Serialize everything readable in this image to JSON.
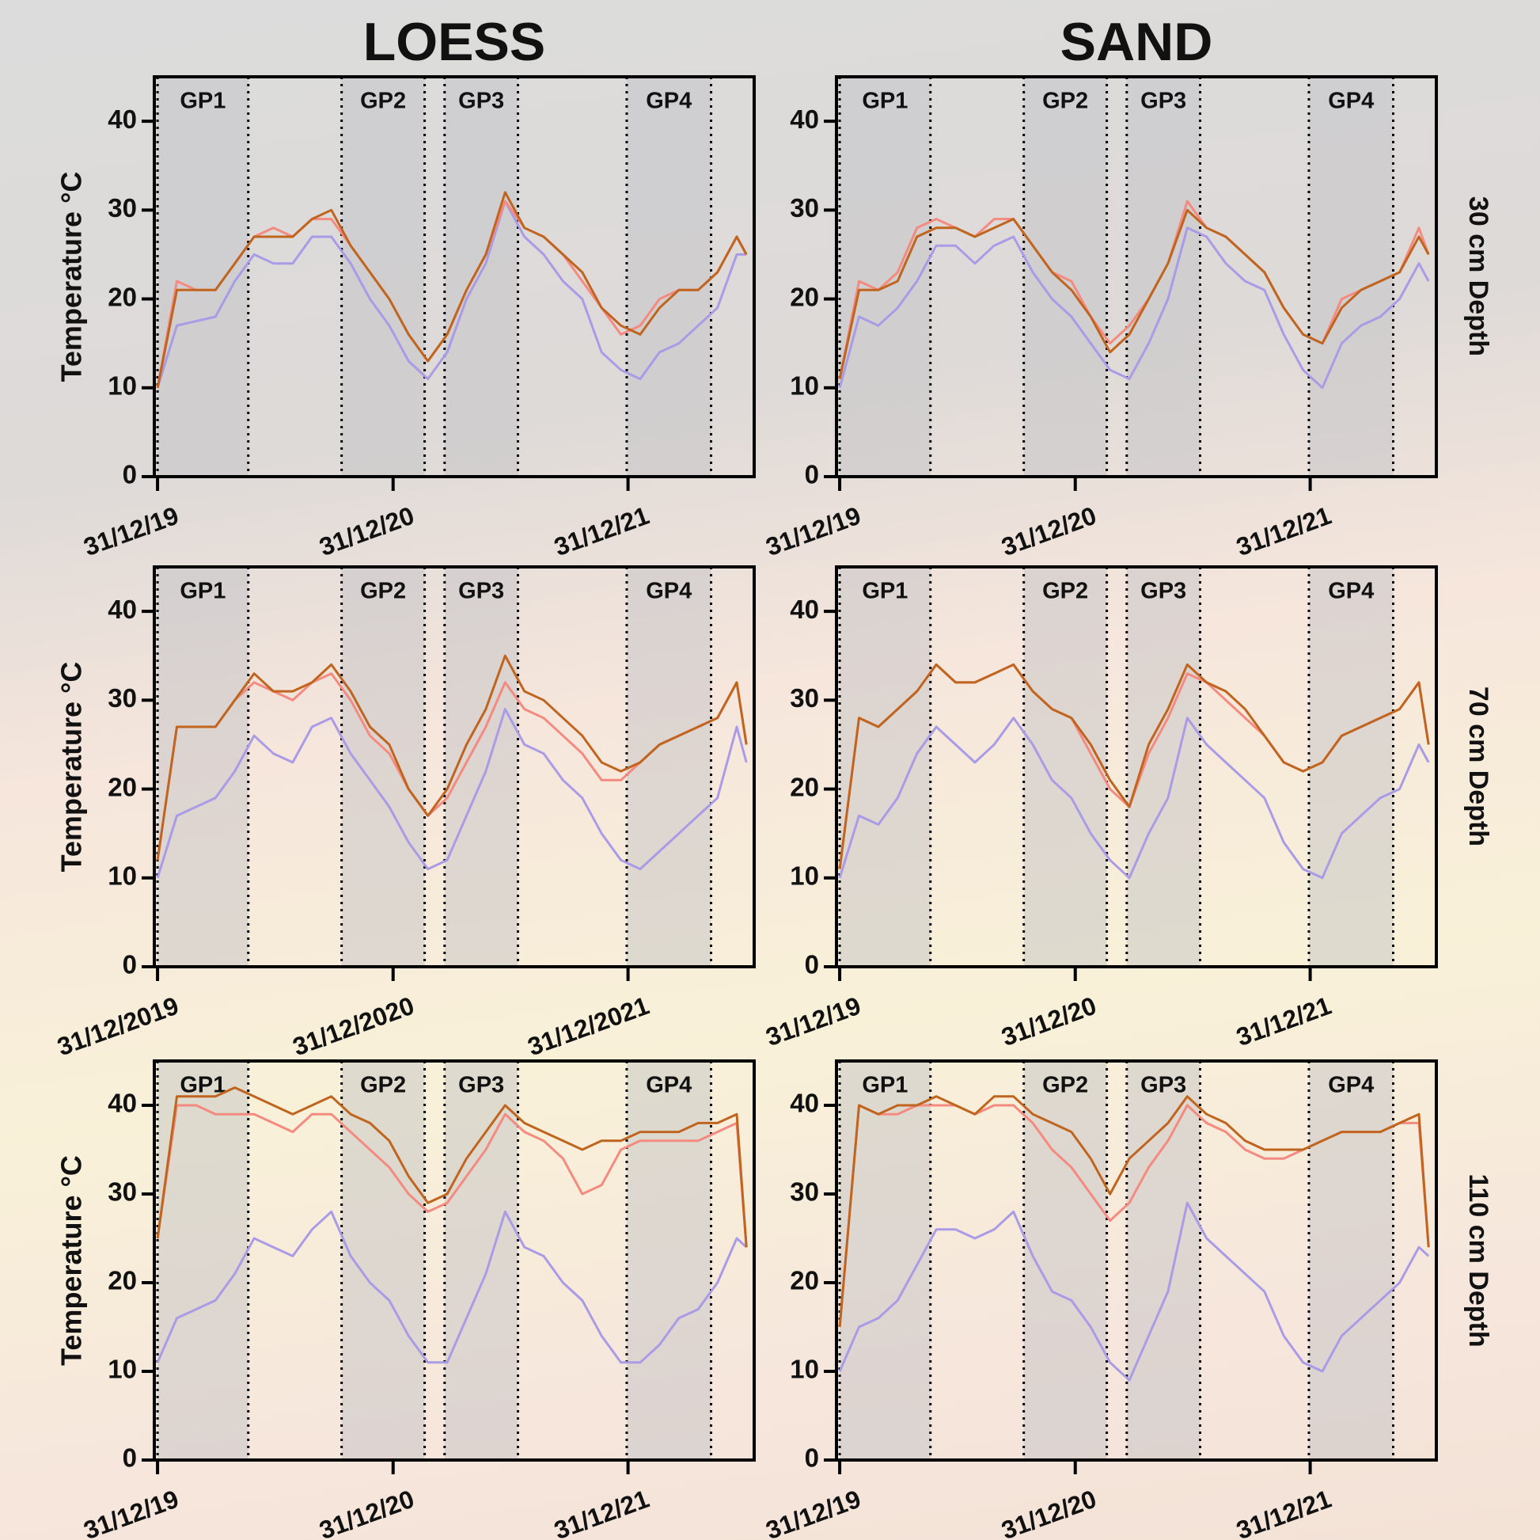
{
  "column_titles": [
    "LOESS",
    "SAND"
  ],
  "row_labels": [
    "30 cm Depth",
    "70 cm Depth",
    "110 cm Depth"
  ],
  "chart_data": [
    {
      "type": "line",
      "ylabel": "Temperature °C",
      "xlim": [
        -5,
        927
      ],
      "ylim": [
        0,
        45
      ],
      "yticks": [
        0,
        10,
        20,
        30,
        40
      ],
      "xticks": [
        {
          "value": 0,
          "label": "31/12/19"
        },
        {
          "value": 366,
          "label": "31/12/20"
        },
        {
          "value": 731,
          "label": "31/12/21"
        }
      ],
      "regions": [
        {
          "label": "GP1",
          "start": 0,
          "end": 141
        },
        {
          "label": "GP2",
          "start": 286,
          "end": 415
        },
        {
          "label": "GP3",
          "start": 446,
          "end": 560
        },
        {
          "label": "GP4",
          "start": 729,
          "end": 860
        }
      ],
      "x": [
        0,
        30,
        60,
        90,
        120,
        150,
        180,
        210,
        240,
        270,
        300,
        330,
        360,
        390,
        420,
        450,
        480,
        510,
        540,
        570,
        600,
        630,
        660,
        690,
        720,
        750,
        780,
        810,
        840,
        870,
        900,
        915
      ],
      "series": [
        {
          "color": "#a99be6",
          "values": [
            10,
            17,
            17.5,
            18,
            22,
            25,
            24,
            24,
            27,
            27,
            24,
            20,
            17,
            13,
            11,
            14,
            20,
            24,
            31,
            27,
            25,
            22,
            20,
            14,
            12,
            11,
            14,
            15,
            17,
            19,
            25,
            25
          ]
        },
        {
          "color": "#f48a80",
          "values": [
            10,
            22,
            21,
            21,
            24,
            27,
            28,
            27,
            29,
            29,
            26,
            23,
            20,
            16,
            13,
            16,
            21,
            25,
            31,
            28,
            27,
            25,
            22,
            19,
            16,
            17,
            20,
            21,
            21,
            23,
            27,
            25
          ]
        },
        {
          "color": "#c0651f",
          "values": [
            10,
            21,
            21,
            21,
            24,
            27,
            27,
            27,
            29,
            30,
            26,
            23,
            20,
            16,
            13,
            16,
            21,
            25,
            32,
            28,
            27,
            25,
            23,
            19,
            17,
            16,
            19,
            21,
            21,
            23,
            27,
            25
          ]
        }
      ]
    },
    {
      "type": "line",
      "xlim": [
        -5,
        927
      ],
      "ylim": [
        0,
        45
      ],
      "yticks": [
        0,
        10,
        20,
        30,
        40
      ],
      "xticks": [
        {
          "value": 0,
          "label": "31/12/19"
        },
        {
          "value": 366,
          "label": "31/12/20"
        },
        {
          "value": 731,
          "label": "31/12/21"
        }
      ],
      "regions": [
        {
          "label": "GP1",
          "start": 0,
          "end": 141
        },
        {
          "label": "GP2",
          "start": 286,
          "end": 415
        },
        {
          "label": "GP3",
          "start": 446,
          "end": 560
        },
        {
          "label": "GP4",
          "start": 729,
          "end": 860
        }
      ],
      "x": [
        0,
        30,
        60,
        90,
        120,
        150,
        180,
        210,
        240,
        270,
        300,
        330,
        360,
        390,
        420,
        450,
        480,
        510,
        540,
        570,
        600,
        630,
        660,
        690,
        720,
        750,
        780,
        810,
        840,
        870,
        900,
        915
      ],
      "series": [
        {
          "color": "#a99be6",
          "values": [
            10,
            18,
            17,
            19,
            22,
            26,
            26,
            24,
            26,
            27,
            23,
            20,
            18,
            15,
            12,
            11,
            15,
            20,
            28,
            27,
            24,
            22,
            21,
            16,
            12,
            10,
            15,
            17,
            18,
            20,
            24,
            22
          ]
        },
        {
          "color": "#f48a80",
          "values": [
            11,
            22,
            21,
            23,
            28,
            29,
            28,
            27,
            29,
            29,
            26,
            23,
            22,
            18,
            15,
            17,
            20,
            24,
            31,
            28,
            27,
            25,
            23,
            19,
            16,
            15,
            20,
            21,
            22,
            23,
            28,
            25
          ]
        },
        {
          "color": "#c0651f",
          "values": [
            11,
            21,
            21,
            22,
            27,
            28,
            28,
            27,
            28,
            29,
            26,
            23,
            21,
            18,
            14,
            16,
            20,
            24,
            30,
            28,
            27,
            25,
            23,
            19,
            16,
            15,
            19,
            21,
            22,
            23,
            27,
            25
          ]
        }
      ]
    },
    {
      "type": "line",
      "ylabel": "Temperature °C",
      "xlim": [
        -5,
        927
      ],
      "ylim": [
        0,
        45
      ],
      "yticks": [
        0,
        10,
        20,
        30,
        40
      ],
      "xticks": [
        {
          "value": 0,
          "label": "31/12/2019"
        },
        {
          "value": 366,
          "label": "31/12/2020"
        },
        {
          "value": 731,
          "label": "31/12/2021"
        }
      ],
      "regions": [
        {
          "label": "GP1",
          "start": 0,
          "end": 141
        },
        {
          "label": "GP2",
          "start": 286,
          "end": 415
        },
        {
          "label": "GP3",
          "start": 446,
          "end": 560
        },
        {
          "label": "GP4",
          "start": 729,
          "end": 860
        }
      ],
      "x": [
        0,
        30,
        60,
        90,
        120,
        150,
        180,
        210,
        240,
        270,
        300,
        330,
        360,
        390,
        420,
        450,
        480,
        510,
        540,
        570,
        600,
        630,
        660,
        690,
        720,
        750,
        780,
        810,
        840,
        870,
        900,
        915
      ],
      "series": [
        {
          "color": "#a99be6",
          "values": [
            10,
            17,
            18,
            19,
            22,
            26,
            24,
            23,
            27,
            28,
            24,
            21,
            18,
            14,
            11,
            12,
            17,
            22,
            29,
            25,
            24,
            21,
            19,
            15,
            12,
            11,
            13,
            15,
            17,
            19,
            27,
            23
          ]
        },
        {
          "color": "#f48a80",
          "values": [
            12,
            27,
            27,
            27,
            30,
            32,
            31,
            30,
            32,
            33,
            30,
            26,
            24,
            20,
            17,
            19,
            23,
            27,
            32,
            29,
            28,
            26,
            24,
            21,
            21,
            23,
            25,
            26,
            27,
            28,
            32,
            25
          ]
        },
        {
          "color": "#c0651f",
          "values": [
            12,
            27,
            27,
            27,
            30,
            33,
            31,
            31,
            32,
            34,
            31,
            27,
            25,
            20,
            17,
            20,
            25,
            29,
            35,
            31,
            30,
            28,
            26,
            23,
            22,
            23,
            25,
            26,
            27,
            28,
            32,
            25
          ]
        }
      ]
    },
    {
      "type": "line",
      "xlim": [
        -5,
        927
      ],
      "ylim": [
        0,
        45
      ],
      "yticks": [
        0,
        10,
        20,
        30,
        40
      ],
      "xticks": [
        {
          "value": 0,
          "label": "31/12/19"
        },
        {
          "value": 366,
          "label": "31/12/20"
        },
        {
          "value": 731,
          "label": "31/12/21"
        }
      ],
      "regions": [
        {
          "label": "GP1",
          "start": 0,
          "end": 141
        },
        {
          "label": "GP2",
          "start": 286,
          "end": 415
        },
        {
          "label": "GP3",
          "start": 446,
          "end": 560
        },
        {
          "label": "GP4",
          "start": 729,
          "end": 860
        }
      ],
      "x": [
        0,
        30,
        60,
        90,
        120,
        150,
        180,
        210,
        240,
        270,
        300,
        330,
        360,
        390,
        420,
        450,
        480,
        510,
        540,
        570,
        600,
        630,
        660,
        690,
        720,
        750,
        780,
        810,
        840,
        870,
        900,
        915
      ],
      "series": [
        {
          "color": "#a99be6",
          "values": [
            10,
            17,
            16,
            19,
            24,
            27,
            25,
            23,
            25,
            28,
            25,
            21,
            19,
            15,
            12,
            10,
            15,
            19,
            28,
            25,
            23,
            21,
            19,
            14,
            11,
            10,
            15,
            17,
            19,
            20,
            25,
            23
          ]
        },
        {
          "color": "#f48a80",
          "values": [
            11,
            28,
            27,
            29,
            31,
            34,
            32,
            32,
            33,
            34,
            31,
            29,
            28,
            24,
            20,
            18,
            24,
            28,
            33,
            32,
            30,
            28,
            26,
            23,
            22,
            23,
            26,
            27,
            28,
            29,
            32,
            25
          ]
        },
        {
          "color": "#c0651f",
          "values": [
            11,
            28,
            27,
            29,
            31,
            34,
            32,
            32,
            33,
            34,
            31,
            29,
            28,
            25,
            21,
            18,
            25,
            29,
            34,
            32,
            31,
            29,
            26,
            23,
            22,
            23,
            26,
            27,
            28,
            29,
            32,
            25
          ]
        }
      ]
    },
    {
      "type": "line",
      "ylabel": "Temperature °C",
      "xlim": [
        -5,
        927
      ],
      "ylim": [
        0,
        45
      ],
      "yticks": [
        0,
        10,
        20,
        30,
        40
      ],
      "xticks": [
        {
          "value": 0,
          "label": "31/12/19"
        },
        {
          "value": 366,
          "label": "31/12/20"
        },
        {
          "value": 731,
          "label": "31/12/21"
        }
      ],
      "regions": [
        {
          "label": "GP1",
          "start": 0,
          "end": 141
        },
        {
          "label": "GP2",
          "start": 286,
          "end": 415
        },
        {
          "label": "GP3",
          "start": 446,
          "end": 560
        },
        {
          "label": "GP4",
          "start": 729,
          "end": 860
        }
      ],
      "x": [
        0,
        30,
        60,
        90,
        120,
        150,
        180,
        210,
        240,
        270,
        300,
        330,
        360,
        390,
        420,
        450,
        480,
        510,
        540,
        570,
        600,
        630,
        660,
        690,
        720,
        750,
        780,
        810,
        840,
        870,
        900,
        915
      ],
      "series": [
        {
          "color": "#a99be6",
          "values": [
            11,
            16,
            17,
            18,
            21,
            25,
            24,
            23,
            26,
            28,
            23,
            20,
            18,
            14,
            11,
            11,
            16,
            21,
            28,
            24,
            23,
            20,
            18,
            14,
            11,
            11,
            13,
            16,
            17,
            20,
            25,
            24
          ]
        },
        {
          "color": "#f48a80",
          "values": [
            25,
            40,
            40,
            39,
            39,
            39,
            38,
            37,
            39,
            39,
            37,
            35,
            33,
            30,
            28,
            29,
            32,
            35,
            39,
            37,
            36,
            34,
            30,
            31,
            35,
            36,
            36,
            36,
            36,
            37,
            38,
            24
          ]
        },
        {
          "color": "#c0651f",
          "values": [
            25,
            41,
            41,
            41,
            42,
            41,
            40,
            39,
            40,
            41,
            39,
            38,
            36,
            32,
            29,
            30,
            34,
            37,
            40,
            38,
            37,
            36,
            35,
            36,
            36,
            37,
            37,
            37,
            38,
            38,
            39,
            24
          ]
        }
      ]
    },
    {
      "type": "line",
      "xlim": [
        -5,
        927
      ],
      "ylim": [
        0,
        45
      ],
      "yticks": [
        0,
        10,
        20,
        30,
        40
      ],
      "xticks": [
        {
          "value": 0,
          "label": "31/12/19"
        },
        {
          "value": 366,
          "label": "31/12/20"
        },
        {
          "value": 731,
          "label": "31/12/21"
        }
      ],
      "regions": [
        {
          "label": "GP1",
          "start": 0,
          "end": 141
        },
        {
          "label": "GP2",
          "start": 286,
          "end": 415
        },
        {
          "label": "GP3",
          "start": 446,
          "end": 560
        },
        {
          "label": "GP4",
          "start": 729,
          "end": 860
        }
      ],
      "x": [
        0,
        30,
        60,
        90,
        120,
        150,
        180,
        210,
        240,
        270,
        300,
        330,
        360,
        390,
        420,
        450,
        480,
        510,
        540,
        570,
        600,
        630,
        660,
        690,
        720,
        750,
        780,
        810,
        840,
        870,
        900,
        915
      ],
      "series": [
        {
          "color": "#a99be6",
          "values": [
            10,
            15,
            16,
            18,
            22,
            26,
            26,
            25,
            26,
            28,
            23,
            19,
            18,
            15,
            11,
            9,
            14,
            19,
            29,
            25,
            23,
            21,
            19,
            14,
            11,
            10,
            14,
            16,
            18,
            20,
            24,
            23
          ]
        },
        {
          "color": "#f48a80",
          "values": [
            15,
            40,
            39,
            39,
            40,
            40,
            40,
            39,
            40,
            40,
            38,
            35,
            33,
            30,
            27,
            29,
            33,
            36,
            40,
            38,
            37,
            35,
            34,
            34,
            35,
            36,
            37,
            37,
            37,
            38,
            38,
            24
          ]
        },
        {
          "color": "#c0651f",
          "values": [
            15,
            40,
            39,
            40,
            40,
            41,
            40,
            39,
            41,
            41,
            39,
            38,
            37,
            34,
            30,
            34,
            36,
            38,
            41,
            39,
            38,
            36,
            35,
            35,
            35,
            36,
            37,
            37,
            37,
            38,
            39,
            24
          ]
        }
      ]
    }
  ]
}
